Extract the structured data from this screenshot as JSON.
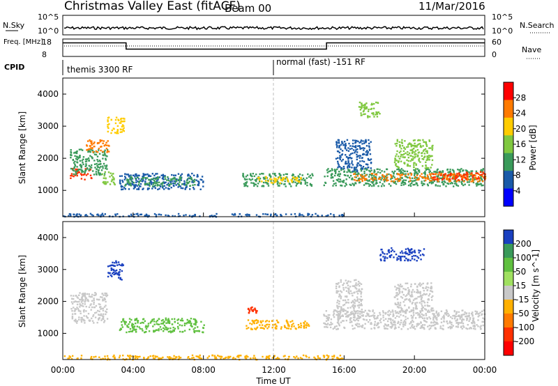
{
  "chart_data": [
    {
      "type": "header",
      "title": "Christmas Valley East (fitACF)",
      "beam": "Beam 00",
      "date": "11/Mar/2016"
    },
    {
      "type": "line",
      "name": "nsky-nsearch-panel",
      "ylabel_left": "N.Sky",
      "ylabel_right": "N.Search",
      "left_ticks": [
        "10^5",
        "10^0"
      ],
      "right_ticks": [
        "10^5",
        "10^0"
      ],
      "level_fraction": 0.35
    },
    {
      "type": "line",
      "name": "freq-nave-panel",
      "ylabel_left": "Freq. [MHz]",
      "ylabel_right": "Nave",
      "left_ticks": [
        "18",
        "8"
      ],
      "right_ticks": [
        "60",
        "0"
      ],
      "freq_segments": [
        {
          "start_h": 0.0,
          "end_h": 3.6,
          "value_frac": 0.78
        },
        {
          "start_h": 3.6,
          "end_h": 15.0,
          "value_frac": 0.42
        },
        {
          "start_h": 15.0,
          "end_h": 24.0,
          "value_frac": 0.78
        }
      ],
      "nave_fraction": 0.6
    },
    {
      "type": "table",
      "name": "cpid-bar",
      "label": "CPID",
      "segments": [
        {
          "start_h": 0.0,
          "end_h": 12.0,
          "text": "themis 3300 RF"
        },
        {
          "start_h": 12.0,
          "end_h": 24.0,
          "text": "normal (fast) -151 RF"
        }
      ]
    },
    {
      "type": "heatmap",
      "name": "power-panel",
      "ylabel": "Slant Range [km]",
      "yticks": [
        1000,
        2000,
        3000,
        4000
      ],
      "ylim": [
        180,
        4500
      ],
      "xlim_hours": [
        0,
        24
      ],
      "colorbar": {
        "label": "Power [dB]",
        "ticks": [
          "28",
          "24",
          "20",
          "16",
          "12",
          "8",
          "4"
        ],
        "colors": [
          "#ff0000",
          "#ff7a00",
          "#ffcc00",
          "#80c840",
          "#3a9a5a",
          "#1a5aa8",
          "#0000ff"
        ]
      },
      "regions": [
        {
          "t0": 0.4,
          "t1": 1.6,
          "r0": 1350,
          "r1": 1700,
          "color": "#ff3000"
        },
        {
          "t0": 0.4,
          "t1": 2.5,
          "r0": 1500,
          "r1": 2300,
          "color": "#3a9a5a"
        },
        {
          "t0": 1.3,
          "t1": 2.6,
          "r0": 2200,
          "r1": 2600,
          "color": "#ff7a00"
        },
        {
          "t0": 2.5,
          "t1": 3.5,
          "r0": 2800,
          "r1": 3300,
          "color": "#ffcc00"
        },
        {
          "t0": 2.2,
          "t1": 3.0,
          "r0": 1200,
          "r1": 1600,
          "color": "#80c840"
        },
        {
          "t0": 3.2,
          "t1": 8.0,
          "r0": 1050,
          "r1": 1550,
          "color": "#1a5aa8"
        },
        {
          "t0": 3.5,
          "t1": 7.5,
          "r0": 1150,
          "r1": 1450,
          "color": "#3a9a5a"
        },
        {
          "t0": 10.2,
          "t1": 14.2,
          "r0": 1150,
          "r1": 1550,
          "color": "#3a9a5a"
        },
        {
          "t0": 11.0,
          "t1": 13.5,
          "r0": 1250,
          "r1": 1450,
          "color": "#ffcc00"
        },
        {
          "t0": 14.8,
          "t1": 24.0,
          "r0": 1150,
          "r1": 1700,
          "color": "#3a9a5a"
        },
        {
          "t0": 16.5,
          "t1": 24.0,
          "r0": 1300,
          "r1": 1550,
          "color": "#ff7a00"
        },
        {
          "t0": 21.0,
          "t1": 24.0,
          "r0": 1350,
          "r1": 1600,
          "color": "#ff3000"
        },
        {
          "t0": 15.5,
          "t1": 17.5,
          "r0": 1600,
          "r1": 2600,
          "color": "#1a5aa8"
        },
        {
          "t0": 18.8,
          "t1": 21.0,
          "r0": 1700,
          "r1": 2600,
          "color": "#80c840"
        },
        {
          "t0": 16.8,
          "t1": 18.0,
          "r0": 3300,
          "r1": 3800,
          "color": "#80c840"
        },
        {
          "t0": 0.0,
          "t1": 16.0,
          "r0": 200,
          "r1": 300,
          "color": "#1a5aa8"
        }
      ]
    },
    {
      "type": "heatmap",
      "name": "velocity-panel",
      "ylabel": "Slant Range [km]",
      "yticks": [
        1000,
        2000,
        3000,
        4000
      ],
      "ylim": [
        180,
        4500
      ],
      "xlim_hours": [
        0,
        24
      ],
      "xticks": [
        "00:00",
        "04:00",
        "08:00",
        "12:00",
        "16:00",
        "20:00",
        "00:00"
      ],
      "xlabel": "Time UT",
      "colorbar": {
        "label": "Velocity [m s^-1]",
        "ticks": [
          "200",
          "100",
          "50",
          "15",
          "-15",
          "-50",
          "-100",
          "-200"
        ],
        "colors": [
          "#1a40c0",
          "#3a9a5a",
          "#60c040",
          "#a0e060",
          "#c8c8c8",
          "#ffb000",
          "#ff7a00",
          "#ff3000",
          "#ff0000"
        ]
      },
      "regions": [
        {
          "t0": 0.4,
          "t1": 2.5,
          "r0": 1350,
          "r1": 2300,
          "color": "#c8c8c8"
        },
        {
          "t0": 2.5,
          "t1": 3.4,
          "r0": 2700,
          "r1": 3300,
          "color": "#1a40c0"
        },
        {
          "t0": 3.2,
          "t1": 8.0,
          "r0": 1050,
          "r1": 1500,
          "color": "#60c040"
        },
        {
          "t0": 10.4,
          "t1": 14.0,
          "r0": 1150,
          "r1": 1450,
          "color": "#ffb000"
        },
        {
          "t0": 10.5,
          "t1": 11.0,
          "r0": 1650,
          "r1": 1850,
          "color": "#ff3000"
        },
        {
          "t0": 14.8,
          "t1": 24.0,
          "r0": 1150,
          "r1": 1750,
          "color": "#c8c8c8"
        },
        {
          "t0": 15.5,
          "t1": 17.0,
          "r0": 1500,
          "r1": 2700,
          "color": "#c8c8c8"
        },
        {
          "t0": 18.8,
          "t1": 21.0,
          "r0": 1700,
          "r1": 2600,
          "color": "#c8c8c8"
        },
        {
          "t0": 18.0,
          "t1": 20.5,
          "r0": 3300,
          "r1": 3700,
          "color": "#1a40c0"
        },
        {
          "t0": 0.0,
          "t1": 16.0,
          "r0": 200,
          "r1": 340,
          "color": "#ffb000"
        }
      ]
    }
  ]
}
